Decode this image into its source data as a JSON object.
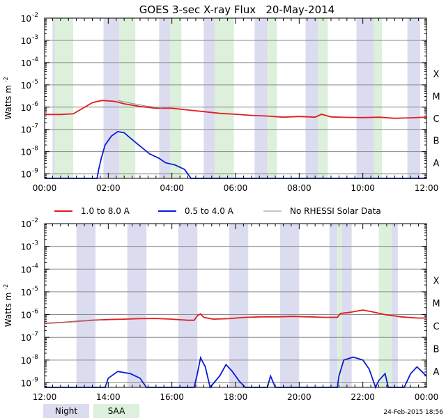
{
  "chart_data": [
    {
      "type": "line",
      "title": "GOES 3-sec X-ray Flux   20-May-2014",
      "ylabel": "Watts m",
      "ylabel_sup": "-2",
      "y_scale": "log",
      "ylim_exp": [
        -9.2,
        -2
      ],
      "y_ticks": [
        {
          "base": "10",
          "exp": "-2",
          "e": -2
        },
        {
          "base": "10",
          "exp": "-3",
          "e": -3
        },
        {
          "base": "10",
          "exp": "-4",
          "e": -4
        },
        {
          "base": "10",
          "exp": "-5",
          "e": -5
        },
        {
          "base": "10",
          "exp": "-6",
          "e": -6
        },
        {
          "base": "10",
          "exp": "-7",
          "e": -7
        },
        {
          "base": "10",
          "exp": "-8",
          "e": -8
        },
        {
          "base": "10",
          "exp": "-9",
          "e": -9
        }
      ],
      "xlim_hours": [
        0,
        12
      ],
      "x_ticks": [
        {
          "label": "00:00",
          "h": 0
        },
        {
          "label": "02:00",
          "h": 2
        },
        {
          "label": "04:00",
          "h": 4
        },
        {
          "label": "06:00",
          "h": 6
        },
        {
          "label": "08:00",
          "h": 8
        },
        {
          "label": "10:00",
          "h": 10
        },
        {
          "label": "12:00",
          "h": 12
        }
      ],
      "class_labels": [
        {
          "label": "X",
          "e": -4
        },
        {
          "label": "M",
          "e": -5
        },
        {
          "label": "C",
          "e": -6
        },
        {
          "label": "B",
          "e": -7
        },
        {
          "label": "A",
          "e": -8
        }
      ],
      "night_bands": [
        [
          0.25,
          0.32
        ],
        [
          1.85,
          2.35
        ],
        [
          3.6,
          3.95
        ],
        [
          5.0,
          5.35
        ],
        [
          6.6,
          7.0
        ],
        [
          8.2,
          8.6
        ],
        [
          9.8,
          10.35
        ],
        [
          11.4,
          11.8
        ]
      ],
      "saa_bands": [
        [
          0.32,
          0.9
        ],
        [
          2.35,
          2.85
        ],
        [
          3.95,
          4.3
        ],
        [
          5.35,
          5.95
        ],
        [
          7.0,
          7.3
        ],
        [
          8.6,
          8.9
        ],
        [
          10.35,
          10.6
        ]
      ],
      "series": [
        {
          "name": "1.0 to 8.0 A",
          "color": "#e21d1d",
          "points": [
            [
              0,
              -6.33
            ],
            [
              0.5,
              -6.33
            ],
            [
              0.9,
              -6.3
            ],
            [
              1.2,
              -6.05
            ],
            [
              1.5,
              -5.8
            ],
            [
              1.8,
              -5.7
            ],
            [
              2.2,
              -5.74
            ],
            [
              2.5,
              -5.85
            ],
            [
              3.0,
              -5.97
            ],
            [
              3.5,
              -6.05
            ],
            [
              4.0,
              -6.05
            ],
            [
              4.5,
              -6.13
            ],
            [
              5.0,
              -6.2
            ],
            [
              5.5,
              -6.28
            ],
            [
              6.0,
              -6.32
            ],
            [
              6.5,
              -6.37
            ],
            [
              7.0,
              -6.4
            ],
            [
              7.5,
              -6.45
            ],
            [
              8.0,
              -6.42
            ],
            [
              8.5,
              -6.45
            ],
            [
              8.7,
              -6.32
            ],
            [
              9.0,
              -6.44
            ],
            [
              9.5,
              -6.46
            ],
            [
              10.0,
              -6.47
            ],
            [
              10.5,
              -6.45
            ],
            [
              11.0,
              -6.5
            ],
            [
              11.5,
              -6.48
            ],
            [
              12.0,
              -6.45
            ]
          ]
        },
        {
          "name": "0.5 to 4.0 A",
          "color": "#0a1bd6",
          "points": [
            [
              0,
              -9.2
            ],
            [
              1.65,
              -9.2
            ],
            [
              1.7,
              -8.8
            ],
            [
              1.78,
              -8.3
            ],
            [
              1.9,
              -7.7
            ],
            [
              2.1,
              -7.3
            ],
            [
              2.3,
              -7.1
            ],
            [
              2.5,
              -7.15
            ],
            [
              2.7,
              -7.4
            ],
            [
              3.0,
              -7.75
            ],
            [
              3.3,
              -8.1
            ],
            [
              3.6,
              -8.3
            ],
            [
              3.8,
              -8.5
            ],
            [
              4.1,
              -8.6
            ],
            [
              4.4,
              -8.8
            ],
            [
              4.6,
              -9.2
            ],
            [
              12,
              -9.2
            ]
          ]
        },
        {
          "name": "No RHESSI Solar Data",
          "color": "#8c8c8c",
          "points": [
            [
              2.3,
              -5.7
            ],
            [
              2.7,
              -5.82
            ],
            [
              3.2,
              -5.95
            ],
            [
              3.6,
              -6.02
            ],
            [
              3.7,
              -6.04
            ]
          ]
        }
      ]
    },
    {
      "type": "line",
      "ylabel": "Watts m",
      "ylabel_sup": "-2",
      "y_scale": "log",
      "ylim_exp": [
        -9.2,
        -2
      ],
      "y_ticks": [
        {
          "base": "10",
          "exp": "-2",
          "e": -2
        },
        {
          "base": "10",
          "exp": "-3",
          "e": -3
        },
        {
          "base": "10",
          "exp": "-4",
          "e": -4
        },
        {
          "base": "10",
          "exp": "-5",
          "e": -5
        },
        {
          "base": "10",
          "exp": "-6",
          "e": -6
        },
        {
          "base": "10",
          "exp": "-7",
          "e": -7
        },
        {
          "base": "10",
          "exp": "-8",
          "e": -8
        },
        {
          "base": "10",
          "exp": "-9",
          "e": -9
        }
      ],
      "xlim_hours": [
        12,
        24
      ],
      "x_ticks": [
        {
          "label": "12:00",
          "h": 12
        },
        {
          "label": "14:00",
          "h": 14
        },
        {
          "label": "16:00",
          "h": 16
        },
        {
          "label": "18:00",
          "h": 18
        },
        {
          "label": "20:00",
          "h": 20
        },
        {
          "label": "22:00",
          "h": 22
        },
        {
          "label": "00:00",
          "h": 24
        }
      ],
      "class_labels": [
        {
          "label": "X",
          "e": -4
        },
        {
          "label": "M",
          "e": -5
        },
        {
          "label": "C",
          "e": -6
        },
        {
          "label": "B",
          "e": -7
        },
        {
          "label": "A",
          "e": -8
        }
      ],
      "night_bands": [
        [
          13.0,
          13.6
        ],
        [
          14.6,
          15.2
        ],
        [
          16.2,
          16.8
        ],
        [
          17.8,
          18.4
        ],
        [
          19.4,
          20.0
        ],
        [
          20.95,
          21.2
        ],
        [
          21.35,
          21.65
        ],
        [
          22.9,
          23.1
        ]
      ],
      "saa_bands": [
        [
          21.2,
          21.35
        ],
        [
          22.5,
          22.9
        ]
      ],
      "series": [
        {
          "name": "1.0 to 8.0 A",
          "color": "#e21d1d",
          "points": [
            [
              12,
              -6.38
            ],
            [
              12.5,
              -6.35
            ],
            [
              13,
              -6.3
            ],
            [
              13.5,
              -6.25
            ],
            [
              14,
              -6.22
            ],
            [
              14.5,
              -6.2
            ],
            [
              15,
              -6.18
            ],
            [
              15.5,
              -6.17
            ],
            [
              16,
              -6.2
            ],
            [
              16.5,
              -6.25
            ],
            [
              16.7,
              -6.25
            ],
            [
              16.8,
              -6.05
            ],
            [
              16.9,
              -5.97
            ],
            [
              17,
              -6.12
            ],
            [
              17.3,
              -6.2
            ],
            [
              17.8,
              -6.18
            ],
            [
              18.3,
              -6.12
            ],
            [
              18.8,
              -6.1
            ],
            [
              19.3,
              -6.1
            ],
            [
              19.8,
              -6.08
            ],
            [
              20.3,
              -6.1
            ],
            [
              20.8,
              -6.12
            ],
            [
              21.2,
              -6.12
            ],
            [
              21.3,
              -5.95
            ],
            [
              21.6,
              -5.9
            ],
            [
              22.0,
              -5.8
            ],
            [
              22.3,
              -5.88
            ],
            [
              22.7,
              -6.0
            ],
            [
              23.2,
              -6.1
            ],
            [
              23.7,
              -6.15
            ],
            [
              24,
              -6.15
            ]
          ]
        },
        {
          "name": "0.5 to 4.0 A",
          "color": "#0a1bd6",
          "points": [
            [
              12,
              -9.2
            ],
            [
              13.9,
              -9.2
            ],
            [
              14.0,
              -8.8
            ],
            [
              14.3,
              -8.5
            ],
            [
              14.7,
              -8.6
            ],
            [
              15.0,
              -8.8
            ],
            [
              15.2,
              -9.2
            ],
            [
              16.7,
              -9.2
            ],
            [
              16.8,
              -8.6
            ],
            [
              16.9,
              -7.9
            ],
            [
              17.05,
              -8.3
            ],
            [
              17.2,
              -9.2
            ],
            [
              17.5,
              -8.7
            ],
            [
              17.7,
              -8.2
            ],
            [
              17.9,
              -8.5
            ],
            [
              18.1,
              -8.9
            ],
            [
              18.3,
              -9.2
            ],
            [
              19.0,
              -9.2
            ],
            [
              19.1,
              -8.7
            ],
            [
              19.25,
              -9.2
            ],
            [
              21.2,
              -9.2
            ],
            [
              21.25,
              -8.7
            ],
            [
              21.4,
              -8.0
            ],
            [
              21.7,
              -7.87
            ],
            [
              22.0,
              -8.0
            ],
            [
              22.2,
              -8.4
            ],
            [
              22.4,
              -9.2
            ],
            [
              22.5,
              -8.9
            ],
            [
              22.7,
              -8.6
            ],
            [
              22.8,
              -9.2
            ],
            [
              23.3,
              -9.2
            ],
            [
              23.5,
              -8.6
            ],
            [
              23.7,
              -8.3
            ],
            [
              23.85,
              -8.5
            ],
            [
              24,
              -8.7
            ]
          ]
        },
        {
          "name": "No RHESSI Solar Data",
          "color": "#8c8c8c",
          "points": [
            [
              12,
              -6.38
            ],
            [
              12.5,
              -6.35
            ],
            [
              13,
              -6.3
            ],
            [
              13.8,
              -6.24
            ]
          ]
        }
      ]
    }
  ],
  "legend": [
    {
      "label": "1.0 to 8.0 A",
      "color": "#e21d1d"
    },
    {
      "label": "0.5 to 4.0 A",
      "color": "#0a1bd6"
    },
    {
      "label": "No RHESSI Solar Data",
      "color": "#8c8c8c"
    }
  ],
  "key": [
    {
      "label": "Night",
      "color": "#dcdcf0"
    },
    {
      "label": "SAA",
      "color": "#dcf0dc"
    }
  ],
  "footer_timestamp": "24-Feb-2015 18:56"
}
